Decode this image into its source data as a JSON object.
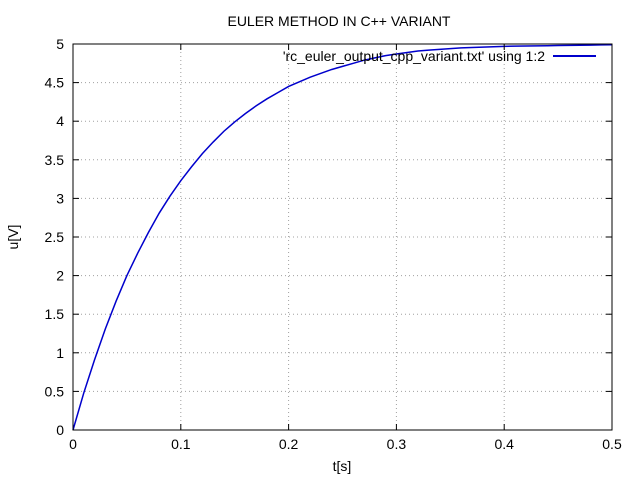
{
  "chart_data": {
    "type": "line",
    "title": "EULER METHOD IN C++ VARIANT",
    "xlabel": "t[s]",
    "ylabel": "u[V]",
    "xlim": [
      0,
      0.5
    ],
    "ylim": [
      0,
      5
    ],
    "xticks": [
      0,
      0.1,
      0.2,
      0.3,
      0.4,
      0.5
    ],
    "xtick_labels": [
      "0",
      "0.1",
      "0.2",
      "0.3",
      "0.4",
      "0.5"
    ],
    "yticks": [
      0,
      0.5,
      1,
      1.5,
      2,
      2.5,
      3,
      3.5,
      4,
      4.5,
      5
    ],
    "ytick_labels": [
      "0",
      "0.5",
      "1",
      "1.5",
      "2",
      "2.5",
      "3",
      "3.5",
      "4",
      "4.5",
      "5"
    ],
    "grid": true,
    "legend_position": "top-right",
    "series": [
      {
        "name": "'rc_euler_output_cpp_variant.txt' using 1:2",
        "color": "#0000cc",
        "x": [
          0,
          0.01,
          0.02,
          0.03,
          0.04,
          0.05,
          0.06,
          0.07,
          0.08,
          0.09,
          0.1,
          0.11,
          0.12,
          0.13,
          0.14,
          0.15,
          0.16,
          0.17,
          0.18,
          0.19,
          0.2,
          0.21,
          0.22,
          0.23,
          0.24,
          0.25,
          0.26,
          0.27,
          0.28,
          0.29,
          0.3,
          0.31,
          0.32,
          0.33,
          0.34,
          0.35,
          0.36,
          0.37,
          0.38,
          0.39,
          0.4,
          0.41,
          0.42,
          0.43,
          0.44,
          0.45,
          0.46,
          0.47,
          0.48,
          0.49,
          0.5
        ],
        "y": [
          0,
          0.48,
          0.91,
          1.31,
          1.67,
          2.0,
          2.29,
          2.56,
          2.81,
          3.03,
          3.23,
          3.41,
          3.58,
          3.73,
          3.87,
          3.99,
          4.1,
          4.2,
          4.29,
          4.37,
          4.45,
          4.51,
          4.57,
          4.62,
          4.67,
          4.71,
          4.75,
          4.79,
          4.82,
          4.85,
          4.87,
          4.89,
          4.91,
          4.92,
          4.93,
          4.94,
          4.95,
          4.955,
          4.96,
          4.965,
          4.97,
          4.972,
          4.974,
          4.976,
          4.978,
          4.98,
          4.982,
          4.984,
          4.986,
          4.988,
          4.99
        ]
      }
    ]
  }
}
